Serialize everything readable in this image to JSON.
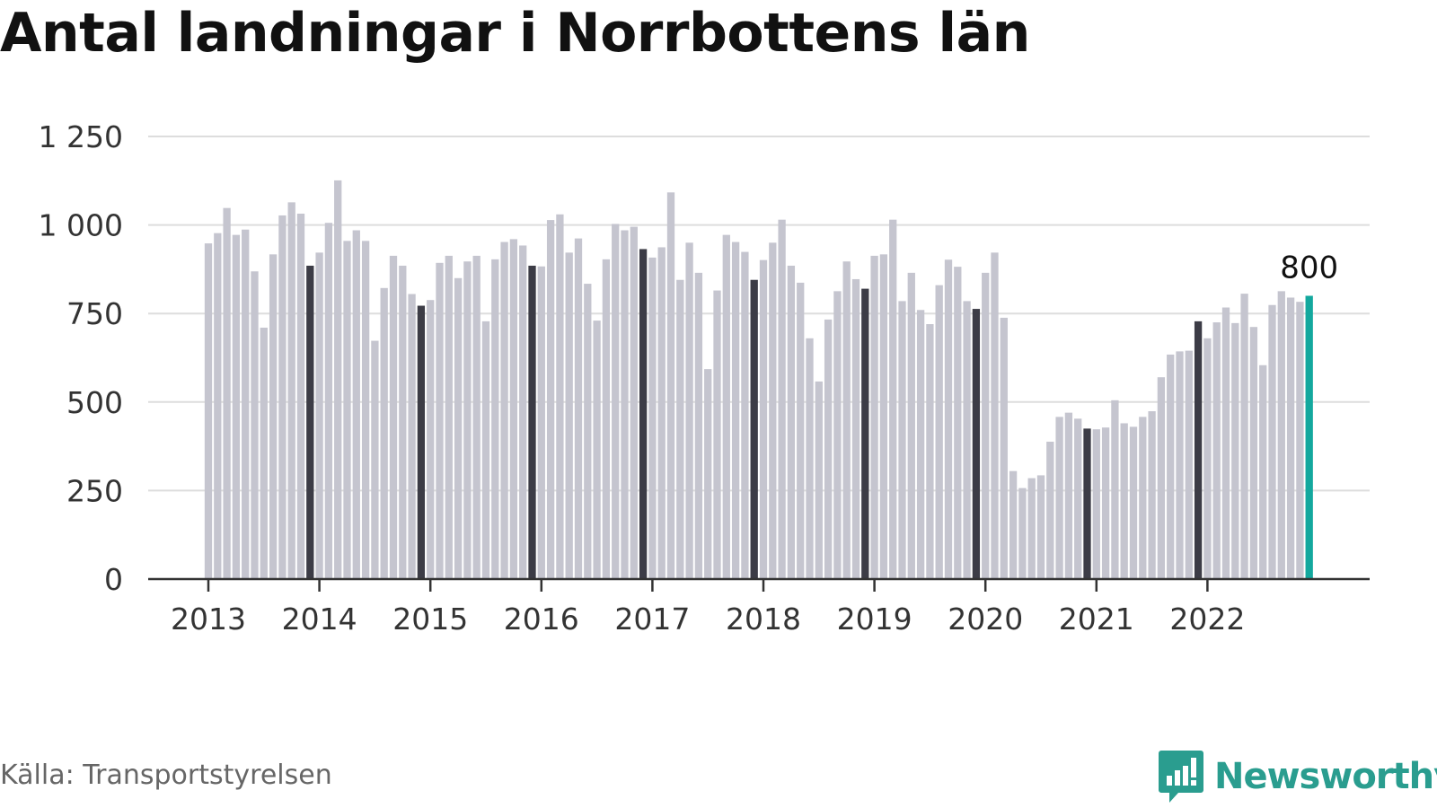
{
  "title": "Antal landningar i Norrbottens län",
  "source": "Källa: Transportstyrelsen",
  "brand": "Newsworthy",
  "colors": {
    "bar": "#c5c5cf",
    "bar_december": "#3c3c46",
    "bar_latest": "#13a89e",
    "grid": "#dddddd",
    "axis": "#333333",
    "brand": "#2a9d8f"
  },
  "chart_data": {
    "type": "bar",
    "ylim": [
      0,
      1250
    ],
    "yticks": [
      0,
      250,
      500,
      750,
      1000,
      1250
    ],
    "ytick_labels": [
      "0",
      "250",
      "500",
      "750",
      "1 000",
      "1 250"
    ],
    "xtick_labels": [
      "2013",
      "2014",
      "2015",
      "2016",
      "2017",
      "2018",
      "2019",
      "2020",
      "2021",
      "2022"
    ],
    "grid": true,
    "x": [
      "2013-01",
      "2013-02",
      "2013-03",
      "2013-04",
      "2013-05",
      "2013-06",
      "2013-07",
      "2013-08",
      "2013-09",
      "2013-10",
      "2013-11",
      "2013-12",
      "2014-01",
      "2014-02",
      "2014-03",
      "2014-04",
      "2014-05",
      "2014-06",
      "2014-07",
      "2014-08",
      "2014-09",
      "2014-10",
      "2014-11",
      "2014-12",
      "2015-01",
      "2015-02",
      "2015-03",
      "2015-04",
      "2015-05",
      "2015-06",
      "2015-07",
      "2015-08",
      "2015-09",
      "2015-10",
      "2015-11",
      "2015-12",
      "2016-01",
      "2016-02",
      "2016-03",
      "2016-04",
      "2016-05",
      "2016-06",
      "2016-07",
      "2016-08",
      "2016-09",
      "2016-10",
      "2016-11",
      "2016-12",
      "2017-01",
      "2017-02",
      "2017-03",
      "2017-04",
      "2017-05",
      "2017-06",
      "2017-07",
      "2017-08",
      "2017-09",
      "2017-10",
      "2017-11",
      "2017-12",
      "2018-01",
      "2018-02",
      "2018-03",
      "2018-04",
      "2018-05",
      "2018-06",
      "2018-07",
      "2018-08",
      "2018-09",
      "2018-10",
      "2018-11",
      "2018-12",
      "2019-01",
      "2019-02",
      "2019-03",
      "2019-04",
      "2019-05",
      "2019-06",
      "2019-07",
      "2019-08",
      "2019-09",
      "2019-10",
      "2019-11",
      "2019-12",
      "2020-01",
      "2020-02",
      "2020-03",
      "2020-04",
      "2020-05",
      "2020-06",
      "2020-07",
      "2020-08",
      "2020-09",
      "2020-10",
      "2020-11",
      "2020-12",
      "2021-01",
      "2021-02",
      "2021-03",
      "2021-04",
      "2021-05",
      "2021-06",
      "2021-07",
      "2021-08",
      "2021-09",
      "2021-10",
      "2021-11",
      "2021-12",
      "2022-01",
      "2022-02",
      "2022-03",
      "2022-04",
      "2022-05",
      "2022-06",
      "2022-07",
      "2022-08",
      "2022-09",
      "2022-10",
      "2022-11",
      "2022-12"
    ],
    "values": [
      948,
      977,
      1048,
      972,
      987,
      869,
      710,
      917,
      1027,
      1064,
      1032,
      885,
      922,
      1006,
      1126,
      955,
      985,
      955,
      673,
      822,
      913,
      885,
      805,
      772,
      788,
      893,
      913,
      850,
      897,
      913,
      728,
      903,
      952,
      960,
      942,
      885,
      883,
      1014,
      1030,
      922,
      962,
      834,
      730,
      903,
      1003,
      985,
      995,
      932,
      908,
      937,
      1092,
      845,
      950,
      865,
      593,
      815,
      972,
      952,
      924,
      845,
      901,
      950,
      1015,
      885,
      837,
      680,
      558,
      733,
      813,
      897,
      847,
      820,
      913,
      917,
      1015,
      785,
      865,
      760,
      720,
      830,
      902,
      882,
      785,
      763,
      865,
      922,
      738,
      305,
      257,
      285,
      293,
      388,
      458,
      470,
      453,
      425,
      423,
      428,
      505,
      440,
      430,
      458,
      474,
      570,
      634,
      643,
      645,
      728,
      680,
      725,
      767,
      723,
      806,
      712,
      604,
      774,
      813,
      795,
      783,
      800
    ],
    "highlight_label": "800"
  }
}
